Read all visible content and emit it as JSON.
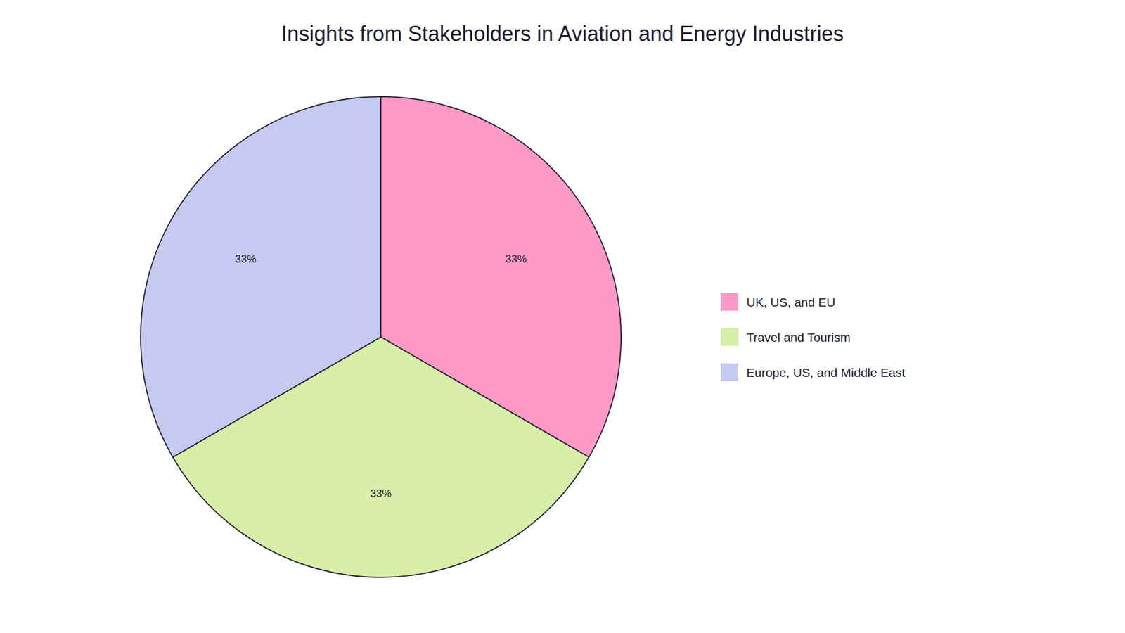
{
  "chart_data": {
    "type": "pie",
    "title": "Insights from Stakeholders in Aviation and Energy Industries",
    "categories": [
      "UK, US, and EU",
      "Travel and Tourism",
      "Europe, US, and Middle East"
    ],
    "values": [
      33,
      33,
      33
    ],
    "value_labels": [
      "33%",
      "33%",
      "33%"
    ],
    "colors": [
      "#FF99C8",
      "#D8EFA8",
      "#C5CAF0"
    ],
    "data_labels": true,
    "legend": "right"
  }
}
